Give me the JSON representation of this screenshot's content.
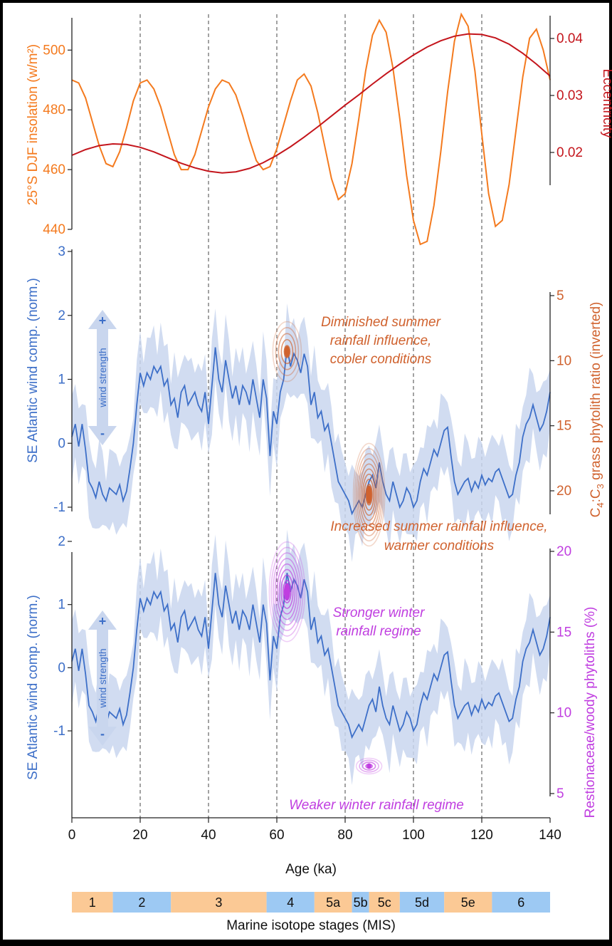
{
  "colors": {
    "insolation": "#f47a1e",
    "eccentricity": "#c4151c",
    "wind": "#3d6fc8",
    "wind_band": "#c9d6ee",
    "c4c3": "#d0622e",
    "restio": "#c03ee0",
    "mis_warm": "#fbc995",
    "mis_cold": "#9dc9f3",
    "axis": "#222222"
  },
  "chart_data": [
    {
      "type": "line",
      "panel": "orbital",
      "ylabel_left": "25°S DJF insolation (w/m²)",
      "ylabel_right": "Eccentricity",
      "xlim": [
        0,
        140
      ],
      "ylim_left": [
        440,
        512
      ],
      "ylim_right": [
        0.014,
        0.044
      ],
      "yticks_left": [
        "440",
        "460",
        "480",
        "500"
      ],
      "yticks_right": [
        "0.02",
        "0.03",
        "0.04"
      ],
      "series": [
        {
          "axis": "left",
          "x": [
            0,
            2,
            4,
            6,
            8,
            10,
            12,
            14,
            16,
            18,
            20,
            22,
            24,
            26,
            28,
            30,
            32,
            34,
            36,
            38,
            40,
            42,
            44,
            46,
            48,
            50,
            52,
            54,
            56,
            58,
            60,
            62,
            64,
            66,
            68,
            70,
            72,
            74,
            76,
            78,
            80,
            82,
            84,
            86,
            88,
            90,
            92,
            94,
            96,
            98,
            100,
            102,
            104,
            106,
            108,
            110,
            112,
            114,
            116,
            118,
            120,
            122,
            124,
            126,
            128,
            130,
            132,
            134,
            136,
            138,
            140
          ],
          "values": [
            490,
            489,
            484,
            476,
            468,
            462,
            461,
            466,
            474,
            483,
            489,
            490,
            487,
            481,
            473,
            465,
            460,
            460,
            465,
            473,
            481,
            487,
            490,
            489,
            485,
            478,
            470,
            463,
            460,
            461,
            467,
            475,
            483,
            490,
            492,
            488,
            479,
            468,
            457,
            450,
            452,
            462,
            477,
            493,
            505,
            510,
            506,
            494,
            477,
            458,
            443,
            435,
            436,
            448,
            466,
            486,
            503,
            512,
            508,
            493,
            472,
            452,
            441,
            443,
            455,
            473,
            491,
            504,
            507,
            500,
            490
          ]
        },
        {
          "axis": "right",
          "x": [
            0,
            4,
            8,
            12,
            16,
            20,
            24,
            28,
            32,
            36,
            40,
            44,
            48,
            52,
            56,
            60,
            64,
            68,
            72,
            76,
            80,
            84,
            88,
            92,
            96,
            100,
            104,
            108,
            112,
            116,
            120,
            124,
            128,
            132,
            136,
            140
          ],
          "values": [
            0.0195,
            0.0205,
            0.0212,
            0.0215,
            0.0214,
            0.0209,
            0.0201,
            0.0191,
            0.0181,
            0.0173,
            0.0167,
            0.0164,
            0.0166,
            0.0172,
            0.0182,
            0.0195,
            0.021,
            0.0227,
            0.0245,
            0.0264,
            0.0283,
            0.0301,
            0.032,
            0.0338,
            0.0355,
            0.0371,
            0.0385,
            0.0396,
            0.0404,
            0.0408,
            0.0407,
            0.0401,
            0.039,
            0.0374,
            0.0355,
            0.0334
          ]
        }
      ]
    },
    {
      "type": "line",
      "panel": "c4c3",
      "ylabel_left": "SE Atlantic wind comp. (norm.)",
      "ylabel_right": "C₄:C₃ grass phytolith ratio (inverted)",
      "xlim": [
        0,
        140
      ],
      "ylim_left": [
        -1.5,
        3
      ],
      "ylim_right_inverted": [
        4.5,
        23.5
      ],
      "yticks_left": [
        "-1",
        "0",
        "1",
        "2",
        "3"
      ],
      "yticks_right": [
        "5",
        "10",
        "15",
        "20"
      ],
      "annotations": [
        "Diminished summer",
        "rainfall influence,",
        "cooler conditions",
        "Increased summer rainfall influence,",
        "warmer conditions"
      ],
      "density_points": [
        {
          "x": 63,
          "y_right": 9.3
        },
        {
          "x": 87,
          "y_right": 20.3
        }
      ]
    },
    {
      "type": "line",
      "panel": "restio",
      "ylabel_left": "SE Atlantic wind comp. (norm.)",
      "ylabel_right": "Restionaceae/woody phytoliths (%)",
      "xlim": [
        0,
        140
      ],
      "ylim_left": [
        -1.5,
        2.7
      ],
      "ylim_right": [
        5,
        20
      ],
      "yticks_left": [
        "-1",
        "0",
        "1",
        "2"
      ],
      "yticks_right": [
        "5",
        "10",
        "15",
        "20"
      ],
      "annotations": [
        "Stronger winter",
        "rainfall regime",
        "Weaker winter rainfall regime"
      ],
      "density_points": [
        {
          "x": 63,
          "y_right": 17.5
        },
        {
          "x": 87,
          "y_right": 6.7
        }
      ]
    }
  ],
  "wind_series": {
    "x": [
      0,
      1,
      2,
      3,
      4,
      5,
      6,
      7,
      8,
      9,
      10,
      11,
      12,
      13,
      14,
      15,
      16,
      17,
      18,
      19,
      20,
      21,
      22,
      23,
      24,
      25,
      26,
      27,
      28,
      29,
      30,
      31,
      32,
      33,
      34,
      35,
      36,
      37,
      38,
      39,
      40,
      41,
      42,
      43,
      44,
      45,
      46,
      47,
      48,
      49,
      50,
      51,
      52,
      53,
      54,
      55,
      56,
      57,
      58,
      59,
      60,
      61,
      62,
      63,
      64,
      65,
      66,
      67,
      68,
      69,
      70,
      71,
      72,
      73,
      74,
      75,
      76,
      77,
      78,
      79,
      80,
      81,
      82,
      83,
      84,
      85,
      86,
      87,
      88,
      89,
      90,
      91,
      92,
      93,
      94,
      95,
      96,
      97,
      98,
      99,
      100,
      101,
      102,
      103,
      104,
      105,
      106,
      107,
      108,
      109,
      110,
      111,
      112,
      113,
      114,
      115,
      116,
      117,
      118,
      119,
      120,
      121,
      122,
      123,
      124,
      125,
      126,
      127,
      128,
      129,
      130,
      131,
      132,
      133,
      134,
      135,
      136,
      137,
      138,
      139,
      140
    ],
    "values": [
      0.1,
      0.3,
      -0.05,
      0.3,
      -0.1,
      -0.6,
      -0.7,
      -0.85,
      -0.6,
      -0.8,
      -0.9,
      -0.7,
      -0.75,
      -0.8,
      -0.65,
      -0.9,
      -0.75,
      -0.4,
      0.0,
      0.6,
      1.1,
      0.9,
      1.1,
      1.0,
      1.2,
      1.1,
      1.2,
      0.9,
      1.0,
      0.6,
      0.7,
      0.4,
      0.8,
      0.9,
      0.6,
      0.7,
      0.8,
      0.6,
      0.5,
      0.8,
      0.3,
      0.9,
      1.5,
      1.0,
      0.8,
      1.3,
      1.0,
      0.7,
      0.9,
      0.6,
      0.9,
      0.8,
      0.6,
      1.0,
      0.7,
      0.4,
      1.0,
      0.7,
      -0.2,
      0.5,
      0.3,
      0.8,
      1.0,
      1.5,
      1.2,
      1.4,
      1.3,
      1.1,
      1.4,
      1.2,
      0.6,
      0.8,
      0.4,
      0.5,
      0.2,
      0.3,
      0.0,
      -0.3,
      -0.6,
      -0.7,
      -0.8,
      -0.9,
      -1.1,
      -1.0,
      -0.9,
      -1.0,
      -0.8,
      -0.6,
      -0.5,
      -0.7,
      -0.3,
      -0.6,
      -0.8,
      -0.9,
      -0.6,
      -0.8,
      -1.0,
      -0.9,
      -0.7,
      -0.8,
      -1.0,
      -0.9,
      -0.6,
      -0.4,
      -0.5,
      -0.3,
      -0.1,
      -0.2,
      0.0,
      0.2,
      0.25,
      -0.2,
      -0.6,
      -0.8,
      -0.7,
      -0.6,
      -0.55,
      -0.75,
      -0.6,
      -0.7,
      -0.5,
      -0.65,
      -0.55,
      -0.6,
      -0.45,
      -0.4,
      -0.55,
      -0.7,
      -0.85,
      -0.8,
      -0.5,
      -0.3,
      0.1,
      0.3,
      0.4,
      0.6,
      0.4,
      0.2,
      0.3,
      0.5,
      0.8
    ],
    "band_half_width": 0.55
  },
  "wind_arrow_label": {
    "plus": "+",
    "text": "wind strength",
    "minus": "-"
  },
  "xaxis": {
    "label": "Age (ka)",
    "ticks": [
      "0",
      "20",
      "40",
      "60",
      "80",
      "100",
      "120",
      "140"
    ],
    "gridlines": [
      20,
      40,
      60,
      80,
      100,
      120
    ]
  },
  "mis": {
    "title": "Marine isotope stages (MIS)",
    "stages": [
      {
        "label": "1",
        "start": 0,
        "end": 12,
        "kind": "warm"
      },
      {
        "label": "2",
        "start": 12,
        "end": 29,
        "kind": "cold"
      },
      {
        "label": "3",
        "start": 29,
        "end": 57,
        "kind": "warm"
      },
      {
        "label": "4",
        "start": 57,
        "end": 71,
        "kind": "cold"
      },
      {
        "label": "5a",
        "start": 71,
        "end": 82,
        "kind": "warm"
      },
      {
        "label": "5b",
        "start": 82,
        "end": 87,
        "kind": "cold"
      },
      {
        "label": "5c",
        "start": 87,
        "end": 96,
        "kind": "warm"
      },
      {
        "label": "5d",
        "start": 96,
        "end": 109,
        "kind": "cold"
      },
      {
        "label": "5e",
        "start": 109,
        "end": 123,
        "kind": "warm"
      },
      {
        "label": "6",
        "start": 123,
        "end": 140,
        "kind": "cold"
      }
    ]
  }
}
